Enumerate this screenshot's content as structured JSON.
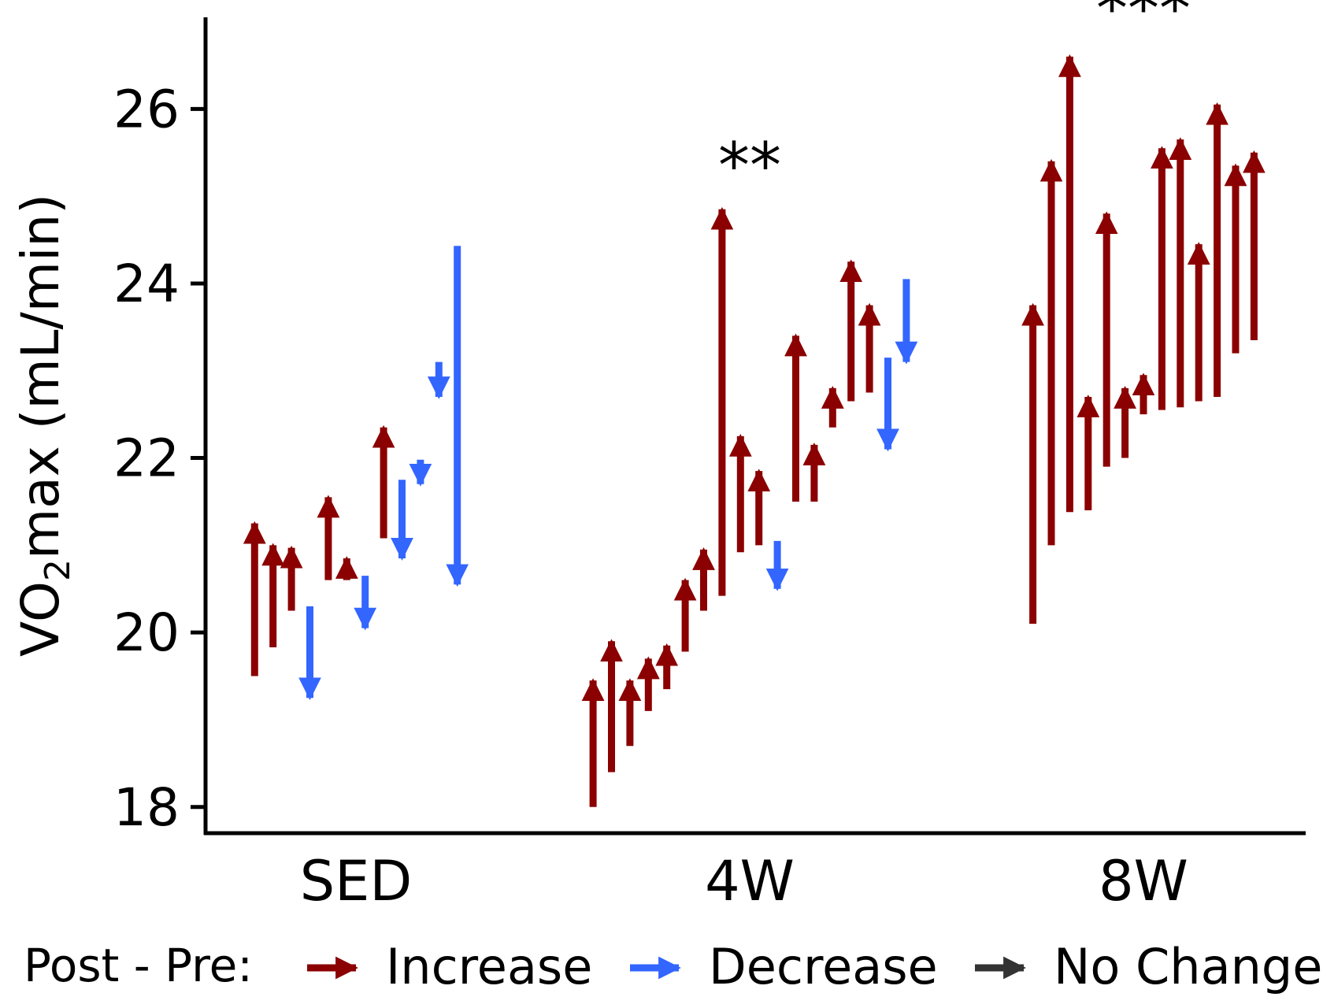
{
  "chart_data": {
    "type": "arrow",
    "title": "",
    "xlabel": "",
    "ylabel": "VO₂max (mL/min)",
    "ylabel_parts": {
      "main": "VO",
      "sub": "2",
      "rest": "max (mL/min)"
    },
    "categories": [
      "SED",
      "4W",
      "8W"
    ],
    "ylim": [
      17.7,
      27.05
    ],
    "yticks": [
      18,
      20,
      22,
      24,
      26
    ],
    "grid": false,
    "legend_position": "bottom",
    "legend": {
      "title": "Post - Pre:",
      "entries": [
        {
          "key": "increase",
          "label": "Increase",
          "color": "#8b0000"
        },
        {
          "key": "decrease",
          "label": "Decrease",
          "color": "#3366ff"
        },
        {
          "key": "nochange",
          "label": "No Change",
          "color": "#333333"
        }
      ]
    },
    "significance": [
      {
        "group": "4W",
        "label": "**",
        "y": 25.1
      },
      {
        "group": "8W",
        "label": "***",
        "y": 26.9
      }
    ],
    "series": [
      {
        "group": "SED",
        "pairs": [
          {
            "pre": 19.5,
            "post": 21.25
          },
          {
            "pre": 19.83,
            "post": 21.0
          },
          {
            "pre": 20.25,
            "post": 20.97
          },
          {
            "pre": 20.3,
            "post": 19.25
          },
          {
            "pre": 20.6,
            "post": 21.55
          },
          {
            "pre": 20.6,
            "post": 20.85
          },
          {
            "pre": 20.65,
            "post": 20.05
          },
          {
            "pre": 21.08,
            "post": 22.35
          },
          {
            "pre": 21.75,
            "post": 20.85
          },
          {
            "pre": 21.98,
            "post": 21.7
          },
          {
            "pre": 23.1,
            "post": 22.7
          },
          {
            "pre": 24.43,
            "post": 20.55
          }
        ]
      },
      {
        "group": "4W",
        "pairs": [
          {
            "pre": 18.0,
            "post": 19.45
          },
          {
            "pre": 18.4,
            "post": 19.9
          },
          {
            "pre": 18.7,
            "post": 19.45
          },
          {
            "pre": 19.1,
            "post": 19.7
          },
          {
            "pre": 19.35,
            "post": 19.85
          },
          {
            "pre": 19.78,
            "post": 20.6
          },
          {
            "pre": 20.25,
            "post": 20.95
          },
          {
            "pre": 20.42,
            "post": 24.85
          },
          {
            "pre": 20.92,
            "post": 22.25
          },
          {
            "pre": 21.0,
            "post": 21.85
          },
          {
            "pre": 21.05,
            "post": 20.5
          },
          {
            "pre": 21.5,
            "post": 23.4
          },
          {
            "pre": 21.5,
            "post": 22.15
          },
          {
            "pre": 22.35,
            "post": 22.8
          },
          {
            "pre": 22.65,
            "post": 24.25
          },
          {
            "pre": 22.75,
            "post": 23.75
          },
          {
            "pre": 23.15,
            "post": 22.1
          },
          {
            "pre": 24.05,
            "post": 23.1
          }
        ]
      },
      {
        "group": "8W",
        "pairs": [
          {
            "pre": 20.1,
            "post": 23.75
          },
          {
            "pre": 21.0,
            "post": 25.4
          },
          {
            "pre": 21.38,
            "post": 26.6
          },
          {
            "pre": 21.4,
            "post": 22.7
          },
          {
            "pre": 21.9,
            "post": 24.8
          },
          {
            "pre": 22.0,
            "post": 22.8
          },
          {
            "pre": 22.5,
            "post": 22.95
          },
          {
            "pre": 22.55,
            "post": 25.55
          },
          {
            "pre": 22.58,
            "post": 25.65
          },
          {
            "pre": 22.65,
            "post": 24.45
          },
          {
            "pre": 22.7,
            "post": 26.05
          },
          {
            "pre": 23.2,
            "post": 25.35
          },
          {
            "pre": 23.35,
            "post": 25.5
          }
        ]
      }
    ]
  }
}
